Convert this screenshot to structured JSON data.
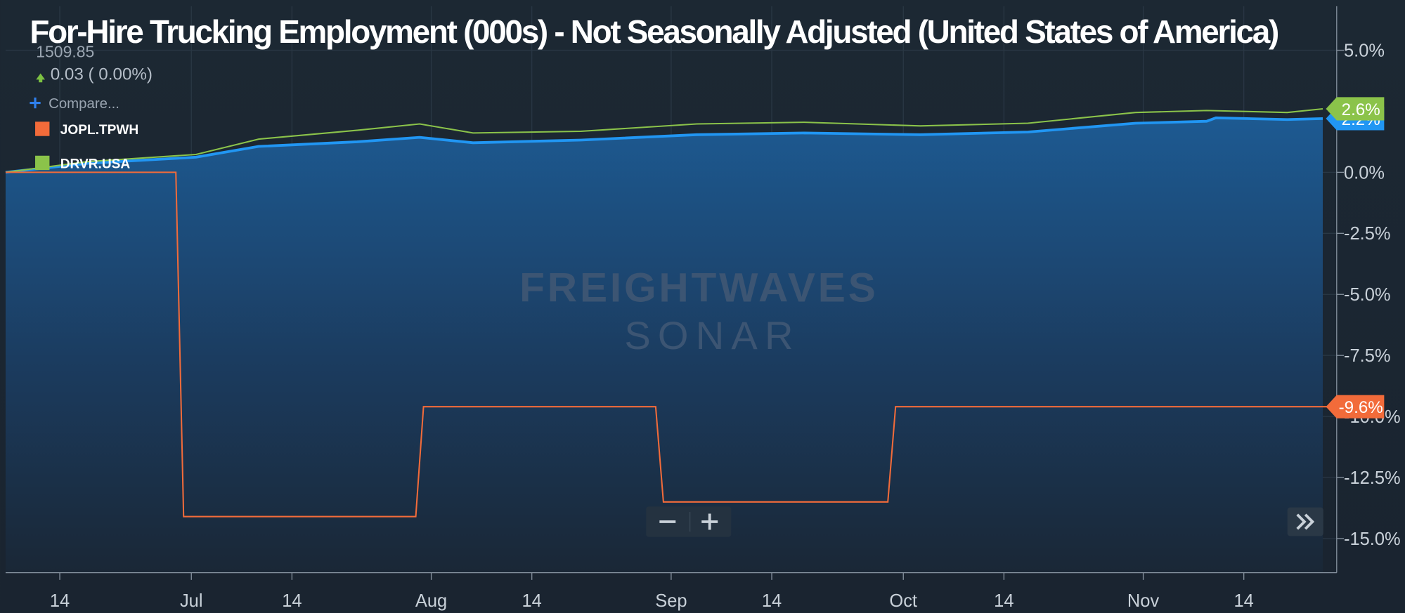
{
  "chart_data": {
    "type": "line",
    "title": "For-Hire Trucking Employment (000s) - Not Seasonally Adjusted (United States of America)",
    "last_value": "1509.85",
    "change": "0.03 ( 0.00%)",
    "compare": "Compare...",
    "watermark": "FREIGHTWAVES",
    "watermark_sub": "SONAR",
    "xlim": [
      -7,
      165
    ],
    "xticks": [
      {
        "value": 0,
        "label": "14"
      },
      {
        "value": 17,
        "label": "Jul"
      },
      {
        "value": 30,
        "label": "14"
      },
      {
        "value": 48,
        "label": "Aug"
      },
      {
        "value": 61,
        "label": "14"
      },
      {
        "value": 79,
        "label": "Sep"
      },
      {
        "value": 92,
        "label": "14"
      },
      {
        "value": 109,
        "label": "Oct"
      },
      {
        "value": 122,
        "label": "14"
      },
      {
        "value": 140,
        "label": "Nov"
      },
      {
        "value": 153,
        "label": "14"
      }
    ],
    "ylim": [
      -16.4,
      6.8
    ],
    "yticks": [
      {
        "value": 5,
        "label": "5.0%"
      },
      {
        "value": 0,
        "label": "0.0%"
      },
      {
        "value": -2.5,
        "label": "-2.5%"
      },
      {
        "value": -5,
        "label": "-5.0%"
      },
      {
        "value": -7.5,
        "label": "-7.5%"
      },
      {
        "value": -10,
        "label": "-10.0%"
      },
      {
        "value": -12.5,
        "label": "-12.5%"
      },
      {
        "value": -15,
        "label": "-15.0%"
      }
    ],
    "grid": true,
    "series": [
      {
        "color": "#2196f3",
        "area": true,
        "x": [
          -7,
          3.7,
          17.6,
          25.7,
          38.4,
          46.5,
          53.4,
          67.3,
          82.3,
          96.2,
          111.2,
          125.1,
          139,
          148.2,
          149.4,
          158.6,
          163.2
        ],
        "values": [
          0,
          0.37,
          0.62,
          1.06,
          1.25,
          1.43,
          1.21,
          1.32,
          1.54,
          1.61,
          1.54,
          1.65,
          2.01,
          2.09,
          2.23,
          2.16,
          2.2
        ],
        "end_label": "2.2%"
      },
      {
        "name": "DRVR.USA",
        "color": "#8bc34a",
        "x": [
          -7,
          3.7,
          17.6,
          25.7,
          38.4,
          46.5,
          53.4,
          67.3,
          82.3,
          96.2,
          111.2,
          125.1,
          139,
          148.2,
          158.6,
          163.2
        ],
        "values": [
          0,
          0.44,
          0.73,
          1.36,
          1.72,
          1.98,
          1.61,
          1.68,
          1.98,
          2.05,
          1.9,
          2.01,
          2.45,
          2.53,
          2.45,
          2.6
        ],
        "end_label": "2.6%"
      },
      {
        "name": "JOPL.TPWH",
        "color": "#f26b3a",
        "x": [
          -7,
          15,
          16,
          46,
          47,
          77,
          78,
          107,
          108,
          164
        ],
        "values": [
          0,
          0,
          -14.1,
          -14.1,
          -9.6,
          -9.6,
          -13.5,
          -13.5,
          -9.6,
          -9.6
        ],
        "end_label": "-9.6%"
      }
    ]
  }
}
